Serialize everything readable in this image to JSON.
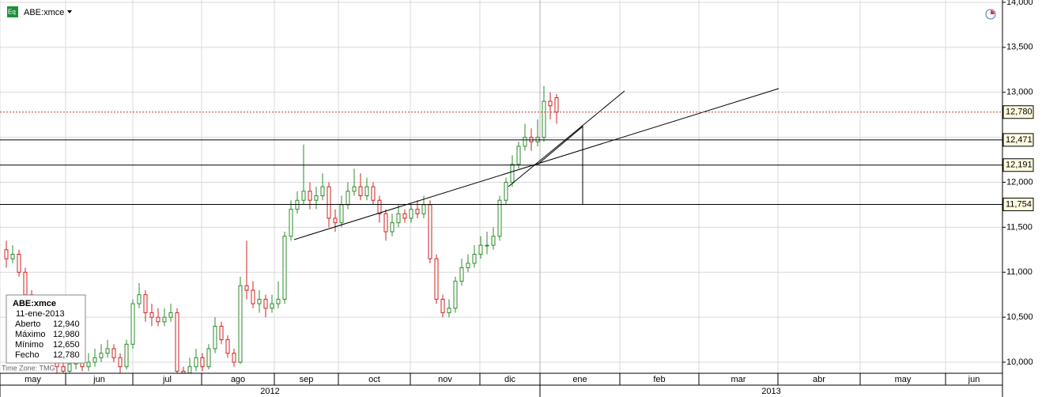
{
  "chart_data": {
    "type": "candlestick",
    "symbol": "ABE:xmce",
    "timezone": "Time Zone: TMG",
    "up_color": "#2a8c2a",
    "down_color": "#d22020",
    "grid": true,
    "x": [
      2,
      4,
      6,
      8,
      10,
      12,
      14,
      16,
      18,
      20,
      22,
      24,
      26,
      28,
      30,
      32,
      34,
      36,
      38,
      40,
      42,
      44,
      46,
      48,
      50,
      52,
      54,
      56,
      58,
      60,
      62,
      64,
      66,
      68,
      70,
      72,
      74,
      76,
      78,
      80,
      82,
      84,
      86,
      88,
      90,
      92,
      94,
      96,
      98,
      100,
      102,
      104,
      106,
      108,
      110,
      112,
      114,
      116,
      118,
      120,
      122,
      124,
      126,
      128,
      130,
      132,
      134,
      136,
      138,
      140,
      142,
      144,
      146,
      148,
      150,
      152,
      154,
      156,
      158,
      160,
      162,
      164,
      166,
      168,
      170,
      172,
      174,
      176
    ],
    "open": [
      11250,
      11150,
      11200,
      11000,
      10750,
      10500,
      10350,
      10200,
      10100,
      9950,
      9900,
      9980,
      10050,
      9950,
      10000,
      10050,
      10100,
      10150,
      10050,
      9950,
      10200,
      10650,
      10750,
      10550,
      10500,
      10450,
      10500,
      10550,
      9900,
      9880,
      9950,
      10050,
      9950,
      10150,
      10400,
      10250,
      10100,
      10000,
      10850,
      10800,
      10650,
      10700,
      10600,
      10650,
      10700,
      11400,
      11700,
      11800,
      11900,
      11800,
      11850,
      11950,
      11600,
      11550,
      11750,
      11900,
      11950,
      11850,
      11950,
      11800,
      11650,
      11450,
      11550,
      11650,
      11600,
      11700,
      11650,
      11750,
      11150,
      10700,
      10550,
      10600,
      10900,
      11050,
      11100,
      11200,
      11300,
      11300,
      11400,
      11800,
      12000,
      12200,
      12400,
      12500,
      12450,
      12500,
      12900,
      12940
    ],
    "high": [
      11350,
      11300,
      11250,
      11050,
      10800,
      10550,
      10400,
      10250,
      10150,
      10050,
      10050,
      10150,
      10100,
      10100,
      10150,
      10200,
      10250,
      10200,
      10100,
      10250,
      10700,
      10880,
      10800,
      10650,
      10600,
      10600,
      10650,
      10600,
      9950,
      10050,
      10150,
      10100,
      10200,
      10500,
      10450,
      10300,
      10150,
      10950,
      11350,
      10900,
      10800,
      10750,
      10750,
      10900,
      11450,
      11800,
      11900,
      12420,
      12000,
      11950,
      12100,
      12000,
      11700,
      11850,
      12000,
      12150,
      12100,
      12050,
      12000,
      11850,
      11700,
      11650,
      11750,
      11700,
      11750,
      11800,
      11850,
      11800,
      11200,
      10750,
      10700,
      10950,
      11150,
      11200,
      11300,
      11400,
      11450,
      11500,
      11850,
      12050,
      12300,
      12450,
      12650,
      12600,
      12700,
      13070,
      13000,
      12980
    ],
    "low": [
      11050,
      11100,
      10950,
      10700,
      10450,
      10300,
      10150,
      10050,
      9880,
      9880,
      9880,
      9920,
      9900,
      9900,
      9950,
      10000,
      10050,
      10000,
      9880,
      9920,
      10150,
      10600,
      10450,
      10400,
      10400,
      10400,
      10450,
      9880,
      9880,
      9880,
      9900,
      9900,
      9920,
      10100,
      10200,
      10050,
      9950,
      9980,
      10700,
      10600,
      10550,
      10500,
      10550,
      10600,
      10650,
      11350,
      11650,
      11750,
      11700,
      11700,
      11800,
      11500,
      11450,
      11500,
      11700,
      11850,
      11800,
      11800,
      11750,
      11550,
      11350,
      11400,
      11500,
      11550,
      11550,
      11600,
      11600,
      11100,
      10650,
      10500,
      10500,
      10550,
      10850,
      11000,
      11050,
      11150,
      11200,
      11250,
      11350,
      11750,
      11950,
      12150,
      12350,
      12350,
      12400,
      12450,
      12700,
      12650
    ],
    "close": [
      11150,
      11200,
      11000,
      10750,
      10500,
      10350,
      10200,
      10100,
      9950,
      9900,
      9980,
      10050,
      9950,
      10000,
      10050,
      10100,
      10150,
      10050,
      9950,
      10200,
      10650,
      10750,
      10550,
      10500,
      10450,
      10500,
      10550,
      9900,
      9880,
      9950,
      10050,
      9950,
      10150,
      10400,
      10250,
      10100,
      10000,
      10850,
      10800,
      10650,
      10700,
      10600,
      10650,
      10700,
      11400,
      11700,
      11800,
      11900,
      11800,
      11850,
      11950,
      11600,
      11550,
      11750,
      11900,
      11950,
      11850,
      11950,
      11800,
      11650,
      11450,
      11550,
      11650,
      11600,
      11700,
      11650,
      11750,
      11150,
      10700,
      10550,
      10600,
      10900,
      11050,
      11100,
      11200,
      11300,
      11300,
      11400,
      11800,
      12000,
      12200,
      12400,
      12500,
      12450,
      12500,
      12900,
      12850,
      12780
    ],
    "xlim": [
      0,
      317
    ],
    "ylim": [
      9877,
      14026
    ],
    "yticks": [
      {
        "value": 10000,
        "label": "10,000"
      },
      {
        "value": 10500,
        "label": "10,500"
      },
      {
        "value": 11000,
        "label": "11,000"
      },
      {
        "value": 11500,
        "label": "11,500"
      },
      {
        "value": 12000,
        "label": "12,000"
      },
      {
        "value": 12500,
        "label": "12,500"
      },
      {
        "value": 13000,
        "label": "13,000"
      },
      {
        "value": 13500,
        "label": "13,500"
      },
      {
        "value": 14000,
        "label": "14,000"
      }
    ],
    "xticks": [
      {
        "value": 0,
        "label": "may"
      },
      {
        "value": 20.75,
        "label": "jun"
      },
      {
        "value": 42,
        "label": "jul"
      },
      {
        "value": 63.75,
        "label": "ago"
      },
      {
        "value": 86.75,
        "label": "sep"
      },
      {
        "value": 107,
        "label": "oct"
      },
      {
        "value": 129.75,
        "label": "nov"
      },
      {
        "value": 151.75,
        "label": "dic"
      },
      {
        "value": 170.75,
        "label": "ene"
      },
      {
        "value": 196,
        "label": "feb"
      },
      {
        "value": 221,
        "label": "mar"
      },
      {
        "value": 246,
        "label": "abr"
      },
      {
        "value": 272,
        "label": "may"
      },
      {
        "value": 299,
        "label": "jun"
      }
    ],
    "year_ticks": [
      {
        "value": 0,
        "label": "2012"
      },
      {
        "value": 170.75,
        "label": "2013"
      }
    ],
    "levels": [
      {
        "value": 12780,
        "label": "12,780"
      },
      {
        "value": 12471,
        "label": "12,471"
      },
      {
        "value": 12191,
        "label": "12,191"
      },
      {
        "value": 11754,
        "label": "11,754"
      }
    ],
    "info": {
      "title": "ABE:xmce",
      "date": "11-ene-2013",
      "rows": [
        [
          "Aberto",
          "12,940"
        ],
        [
          "Máximo",
          "12,980"
        ],
        [
          "Mínimo",
          "12,650"
        ],
        [
          "Fecho",
          "12,780"
        ]
      ]
    }
  }
}
